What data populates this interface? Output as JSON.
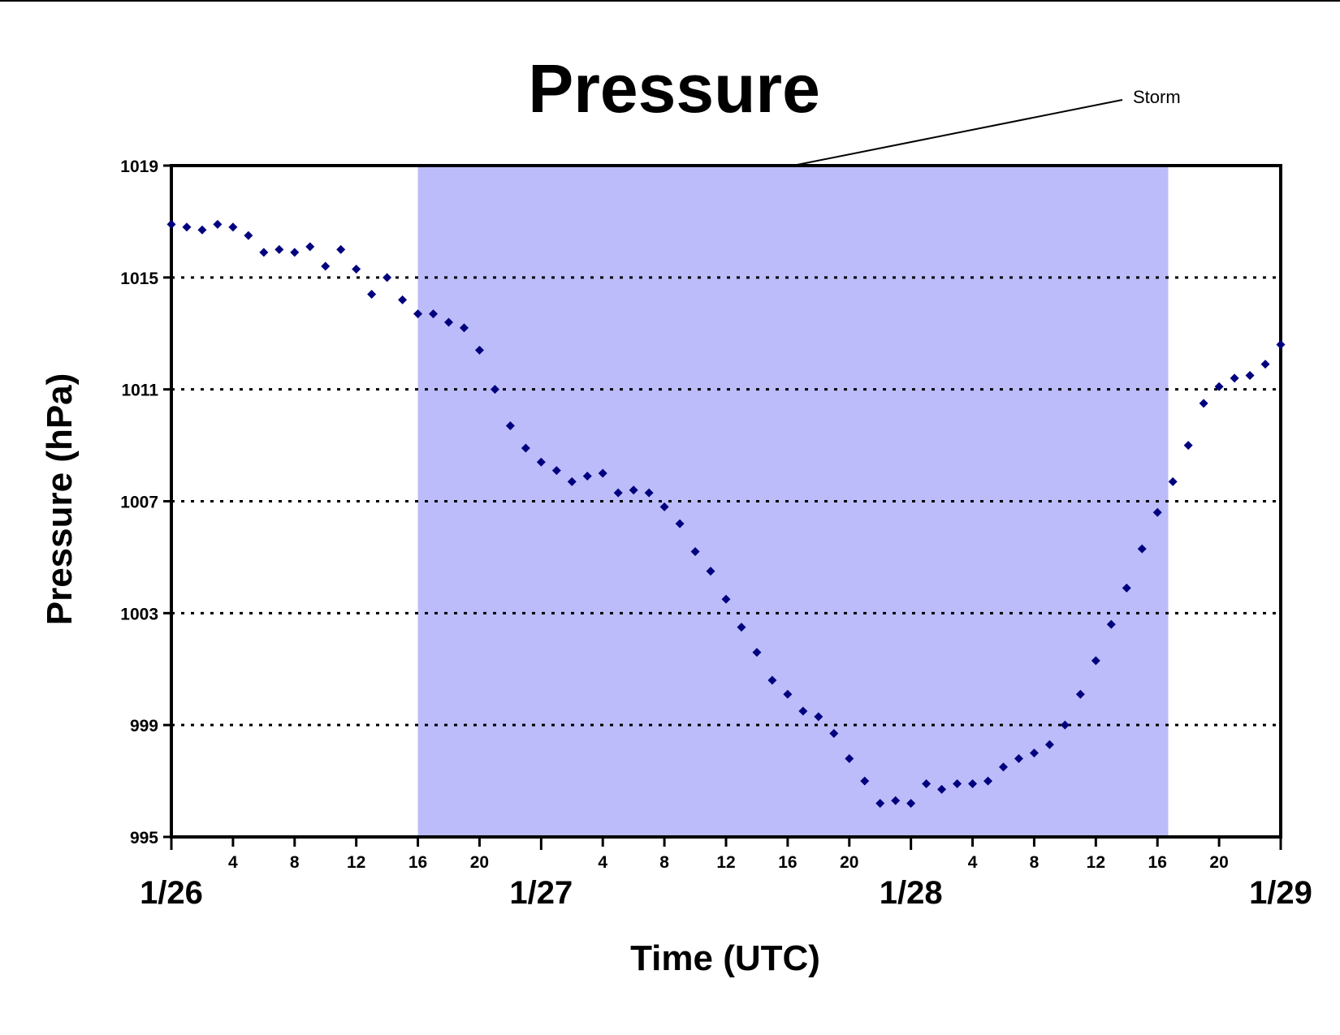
{
  "chart_data": {
    "type": "scatter",
    "title": "Pressure",
    "xlabel": "Time (UTC)",
    "ylabel": "Pressure (hPa)",
    "ylim": [
      995,
      1019
    ],
    "yticks": [
      995,
      999,
      1003,
      1007,
      1011,
      1015,
      1019
    ],
    "grid": "horizontal dotted",
    "date_labels": [
      {
        "hour": 0,
        "label": "1/26"
      },
      {
        "hour": 24,
        "label": "1/27"
      },
      {
        "hour": 48,
        "label": "1/28"
      },
      {
        "hour": 72,
        "label": "1/29"
      }
    ],
    "hour_ticks": [
      {
        "hour": 4,
        "label": "4"
      },
      {
        "hour": 8,
        "label": "8"
      },
      {
        "hour": 12,
        "label": "12"
      },
      {
        "hour": 16,
        "label": "16"
      },
      {
        "hour": 20,
        "label": "20"
      },
      {
        "hour": 28,
        "label": "4"
      },
      {
        "hour": 32,
        "label": "8"
      },
      {
        "hour": 36,
        "label": "12"
      },
      {
        "hour": 40,
        "label": "16"
      },
      {
        "hour": 44,
        "label": "20"
      },
      {
        "hour": 52,
        "label": "4"
      },
      {
        "hour": 56,
        "label": "8"
      },
      {
        "hour": 60,
        "label": "12"
      },
      {
        "hour": 64,
        "label": "16"
      },
      {
        "hour": 68,
        "label": "20"
      }
    ],
    "series": [
      {
        "color": "#00007f",
        "marker": "diamond",
        "x": [
          0,
          1,
          2,
          3,
          4,
          5,
          6,
          7,
          8,
          9,
          10,
          11,
          12,
          13,
          14,
          15,
          16,
          17,
          18,
          19,
          20,
          21,
          22,
          23,
          24,
          25,
          26,
          27,
          28,
          29,
          30,
          31,
          32,
          33,
          34,
          35,
          36,
          37,
          38,
          39,
          40,
          41,
          42,
          43,
          44,
          45,
          46,
          47,
          48,
          49,
          50,
          51,
          52,
          53,
          54,
          55,
          56,
          57,
          58,
          59,
          60,
          61,
          62,
          63,
          64,
          65,
          66,
          67,
          68,
          69,
          70,
          71,
          72
        ],
        "y": [
          1016.9,
          1016.8,
          1016.7,
          1016.9,
          1016.8,
          1016.5,
          1015.9,
          1016.0,
          1015.9,
          1016.1,
          1015.4,
          1016.0,
          1015.3,
          1014.4,
          1015.0,
          1014.2,
          1013.7,
          1013.7,
          1013.4,
          1013.2,
          1012.4,
          1011.0,
          1009.7,
          1008.9,
          1008.4,
          1008.1,
          1007.7,
          1007.9,
          1008.0,
          1007.3,
          1007.4,
          1007.3,
          1006.8,
          1006.2,
          1005.2,
          1004.5,
          1003.5,
          1002.5,
          1001.6,
          1000.6,
          1000.1,
          999.5,
          999.3,
          998.7,
          997.8,
          997.0,
          996.2,
          996.3,
          996.2,
          996.9,
          996.7,
          996.9,
          996.9,
          997.0,
          997.5,
          997.8,
          998.0,
          998.3,
          999.0,
          1000.1,
          1001.3,
          1002.6,
          1003.9,
          1005.3,
          1006.6,
          1007.7,
          1009.0,
          1010.5,
          1011.1,
          1011.4,
          1011.5,
          1011.9,
          1012.6
        ]
      }
    ],
    "annotation": {
      "label": "Storm",
      "shaded_start_hour": 16,
      "shaded_end_hour": 64.7,
      "shade_color": "#bcbcfa"
    }
  }
}
